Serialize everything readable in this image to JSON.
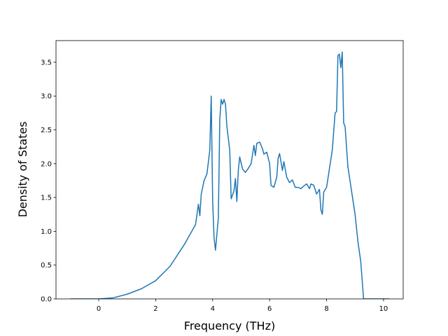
{
  "chart_data": {
    "type": "line",
    "xlabel": "Frequency (THz)",
    "ylabel": "Density of States",
    "x": [
      -1,
      -0.5,
      0,
      0.5,
      1,
      1.5,
      2,
      2.5,
      3,
      3.2,
      3.4,
      3.5,
      3.55,
      3.6,
      3.7,
      3.8,
      3.9,
      3.95,
      4.0,
      4.05,
      4.1,
      4.2,
      4.25,
      4.3,
      4.35,
      4.4,
      4.45,
      4.5,
      4.6,
      4.65,
      4.75,
      4.8,
      4.85,
      4.9,
      4.95,
      5.05,
      5.15,
      5.25,
      5.35,
      5.45,
      5.5,
      5.55,
      5.65,
      5.75,
      5.8,
      5.9,
      6.0,
      6.05,
      6.15,
      6.25,
      6.3,
      6.35,
      6.45,
      6.5,
      6.6,
      6.7,
      6.8,
      6.9,
      7.0,
      7.1,
      7.2,
      7.3,
      7.4,
      7.45,
      7.55,
      7.65,
      7.75,
      7.8,
      7.85,
      7.9,
      8.0,
      8.2,
      8.3,
      8.35,
      8.4,
      8.45,
      8.5,
      8.55,
      8.6,
      8.65,
      8.75,
      9.0,
      9.1,
      9.2,
      9.3,
      10.2
    ],
    "series": [
      {
        "name": "DOS",
        "color": "#1f77b4",
        "values": [
          0,
          0,
          0,
          0.015,
          0.07,
          0.15,
          0.27,
          0.48,
          0.8,
          0.95,
          1.1,
          1.4,
          1.23,
          1.55,
          1.75,
          1.85,
          2.2,
          3.0,
          1.45,
          0.9,
          0.72,
          1.2,
          2.65,
          2.95,
          2.88,
          2.95,
          2.88,
          2.55,
          2.2,
          1.48,
          1.6,
          1.78,
          1.44,
          1.9,
          2.1,
          1.92,
          1.87,
          1.93,
          2.0,
          2.27,
          2.12,
          2.3,
          2.32,
          2.22,
          2.14,
          2.17,
          2.0,
          1.68,
          1.65,
          1.8,
          2.08,
          2.15,
          1.9,
          2.03,
          1.8,
          1.72,
          1.76,
          1.65,
          1.65,
          1.63,
          1.67,
          1.7,
          1.63,
          1.7,
          1.68,
          1.55,
          1.62,
          1.32,
          1.25,
          1.58,
          1.65,
          2.2,
          2.75,
          2.77,
          3.6,
          3.62,
          3.42,
          3.65,
          2.6,
          2.55,
          1.95,
          1.25,
          0.85,
          0.55,
          0,
          0
        ]
      }
    ],
    "xlim": [
      -1.5,
      10.69
    ],
    "ylim": [
      0,
      3.82
    ],
    "xticks": [
      0,
      2,
      4,
      6,
      8,
      10
    ],
    "yticks": [
      {
        "value": 0,
        "label": "0.0"
      },
      0.5,
      {
        "value": 1,
        "label": "1.0"
      },
      1.5,
      {
        "value": 2,
        "label": "2.0"
      },
      2.5,
      {
        "value": 3,
        "label": "3.0"
      },
      3.5
    ]
  }
}
